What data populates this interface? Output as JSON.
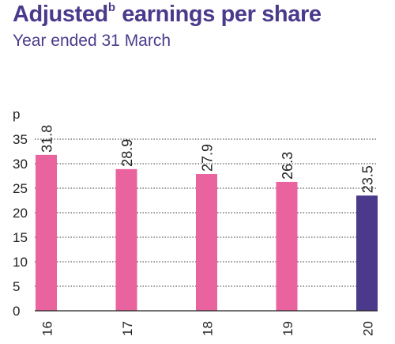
{
  "colors": {
    "title": "#4b3a8c",
    "bar_pink": "#e9649f",
    "bar_purple": "#4b3a8c",
    "axis_text": "#222222",
    "grid": "#333333"
  },
  "header": {
    "title_main": "Adjusted",
    "title_superscript": "b",
    "title_rest": " earnings per share",
    "subtitle": "Year ended 31 March"
  },
  "chart_data": {
    "type": "bar",
    "categories": [
      "16",
      "17",
      "18",
      "19",
      "20"
    ],
    "values": [
      31.8,
      28.9,
      27.9,
      26.3,
      23.5
    ],
    "value_labels": [
      "31.8",
      "28.9",
      "27.9",
      "26.3",
      "23.5"
    ],
    "bar_colors": [
      "#e9649f",
      "#e9649f",
      "#e9649f",
      "#e9649f",
      "#4b3a8c"
    ],
    "unit_label": "p",
    "ylim": [
      0,
      35
    ],
    "yticks": [
      0,
      5,
      10,
      15,
      20,
      25,
      30,
      35
    ],
    "grid": "dotted horizontal",
    "legend": "none"
  }
}
